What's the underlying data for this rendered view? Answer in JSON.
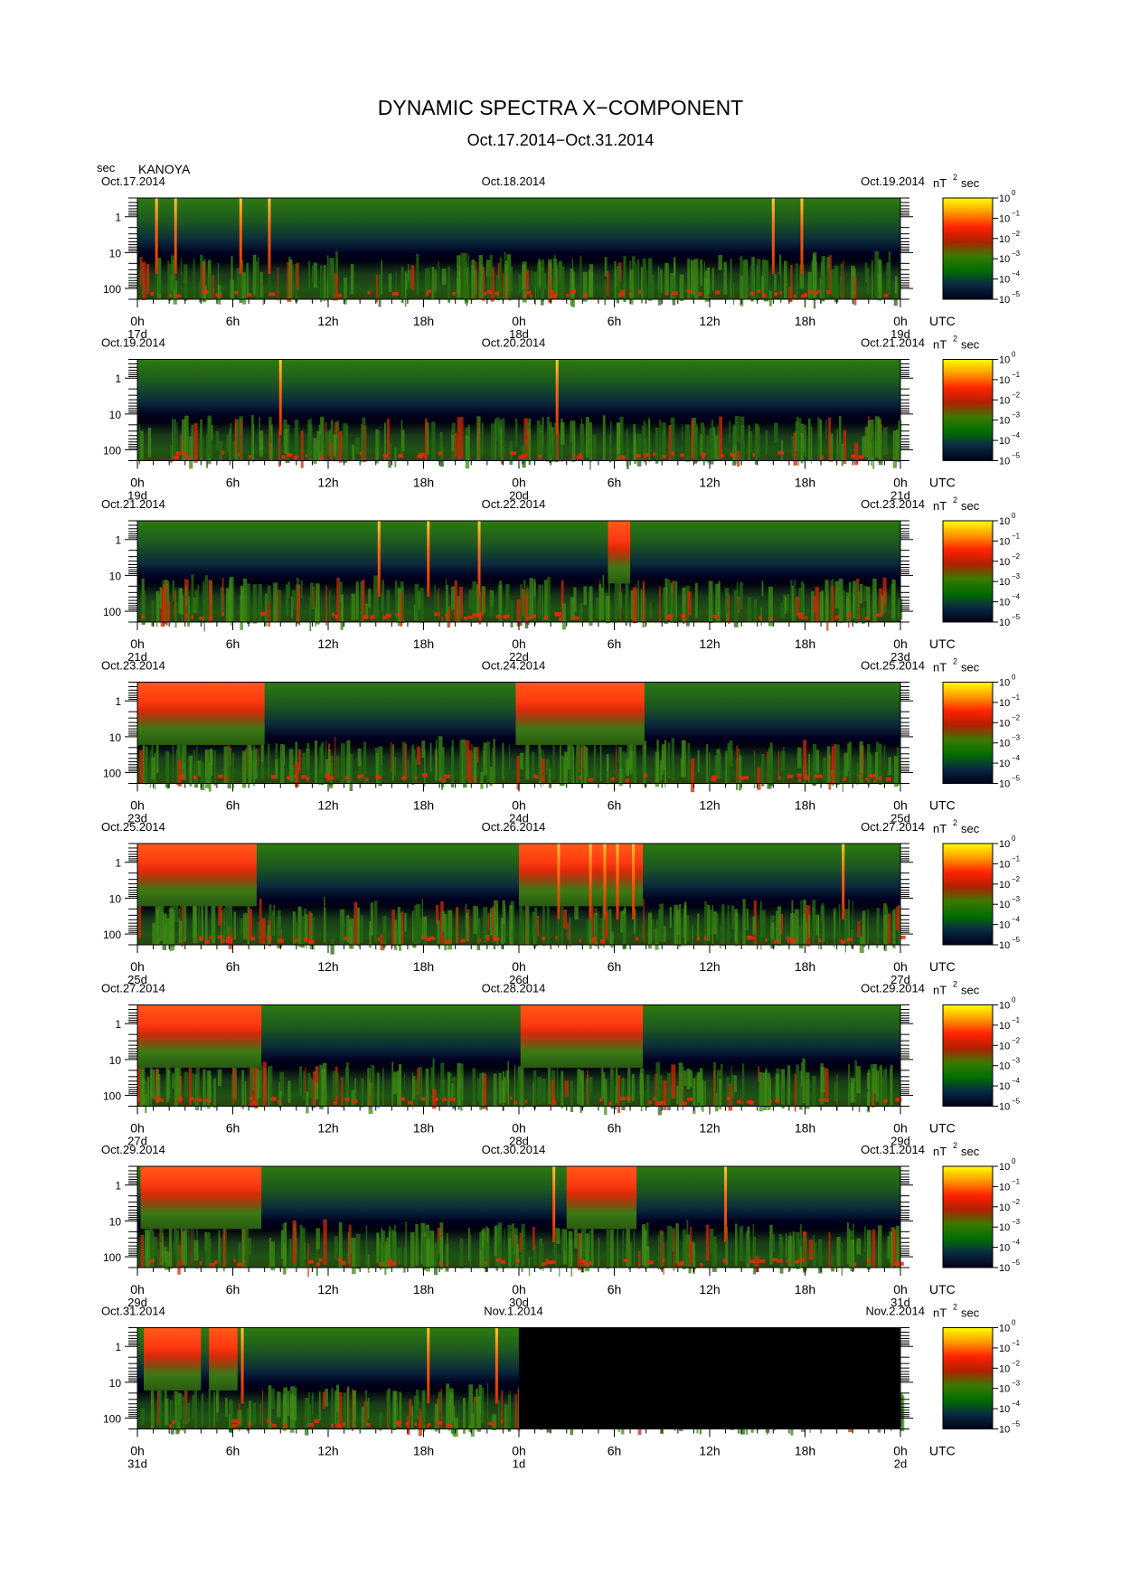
{
  "header": {
    "title": "DYNAMIC SPECTRA X−COMPONENT",
    "date_range": "Oct.17.2014−Oct.31.2014",
    "y_unit": "sec",
    "station": "KANOYA",
    "time_zone": "UTC"
  },
  "colorbar": {
    "unit_prefix": "nT",
    "unit_exp": "2",
    "unit_suffix": "sec",
    "ticks": [
      {
        "base": "10",
        "exp": "0"
      },
      {
        "base": "10",
        "exp": "−1"
      },
      {
        "base": "10",
        "exp": "−2"
      },
      {
        "base": "10",
        "exp": "−3"
      },
      {
        "base": "10",
        "exp": "−4"
      },
      {
        "base": "10",
        "exp": "−5"
      }
    ],
    "colors": [
      "#ffff00",
      "#ff9900",
      "#ff2200",
      "#b02000",
      "#3a7a00",
      "#006f00",
      "#0a2a44",
      "#000018"
    ]
  },
  "chart_data": {
    "type": "heatmap",
    "title": "DYNAMIC SPECTRA X−COMPONENT",
    "subtitle": "Oct.17.2014−Oct.31.2014",
    "station": "KANOYA",
    "y_axis": {
      "label": "sec",
      "scale": "log",
      "range": [
        200,
        0.3
      ],
      "ticks": [
        "1",
        "10",
        "100"
      ]
    },
    "x_axis": {
      "label": "UTC",
      "range_hours": [
        0,
        48
      ],
      "ticks": [
        "0h",
        "6h",
        "12h",
        "18h",
        "0h",
        "6h",
        "12h",
        "18h",
        "0h"
      ]
    },
    "color_scale": {
      "label": "nT²sec",
      "scale": "log",
      "range": [
        1e-05,
        1
      ]
    },
    "panels": [
      {
        "left_date": "Oct.17.2014",
        "mid_date": "Oct.18.2014",
        "right_date": "Oct.19.2014",
        "day_labels": [
          "17d",
          "18d",
          "19d"
        ],
        "high_power_intervals_h": [],
        "spikes_h": [
          1.2,
          2.4,
          6.5,
          8.3,
          40.0,
          41.8
        ],
        "no_data_from_h": null
      },
      {
        "left_date": "Oct.19.2014",
        "mid_date": "Oct.20.2014",
        "right_date": "Oct.21.2014",
        "day_labels": [
          "19d",
          "20d",
          "21d"
        ],
        "high_power_intervals_h": [],
        "spikes_h": [
          9.0,
          26.4
        ],
        "no_data_from_h": null
      },
      {
        "left_date": "Oct.21.2014",
        "mid_date": "Oct.22.2014",
        "right_date": "Oct.23.2014",
        "day_labels": [
          "21d",
          "22d",
          "23d"
        ],
        "high_power_intervals_h": [
          [
            29.6,
            31.0
          ]
        ],
        "spikes_h": [
          15.2,
          18.3,
          21.5
        ],
        "no_data_from_h": null
      },
      {
        "left_date": "Oct.23.2014",
        "mid_date": "Oct.24.2014",
        "right_date": "Oct.25.2014",
        "day_labels": [
          "23d",
          "24d",
          "25d"
        ],
        "high_power_intervals_h": [
          [
            0.0,
            8.0
          ],
          [
            23.8,
            31.9
          ]
        ],
        "spikes_h": [],
        "no_data_from_h": null
      },
      {
        "left_date": "Oct.25.2014",
        "mid_date": "Oct.26.2014",
        "right_date": "Oct.27.2014",
        "day_labels": [
          "25d",
          "26d",
          "27d"
        ],
        "high_power_intervals_h": [
          [
            0.0,
            7.5
          ],
          [
            24.0,
            31.8
          ]
        ],
        "spikes_h": [
          26.5,
          28.5,
          29.4,
          30.2,
          31.2,
          44.4
        ],
        "no_data_from_h": null
      },
      {
        "left_date": "Oct.27.2014",
        "mid_date": "Oct.28.2014",
        "right_date": "Oct.29.2014",
        "day_labels": [
          "27d",
          "28d",
          "29d"
        ],
        "high_power_intervals_h": [
          [
            0.0,
            7.8
          ],
          [
            24.1,
            31.8
          ]
        ],
        "spikes_h": [],
        "no_data_from_h": null
      },
      {
        "left_date": "Oct.29.2014",
        "mid_date": "Oct.30.2014",
        "right_date": "Oct.31.2014",
        "day_labels": [
          "29d",
          "30d",
          "31d"
        ],
        "high_power_intervals_h": [
          [
            0.2,
            7.8
          ],
          [
            27.0,
            31.4
          ]
        ],
        "spikes_h": [
          26.2,
          37.0
        ],
        "no_data_from_h": null
      },
      {
        "left_date": "Oct.31.2014",
        "mid_date": "Nov.1.2014",
        "right_date": "Nov.2.2014",
        "day_labels": [
          "31d",
          "1d",
          "2d"
        ],
        "high_power_intervals_h": [
          [
            0.4,
            4.0
          ],
          [
            4.5,
            6.3
          ]
        ],
        "spikes_h": [
          6.6,
          18.3,
          22.6
        ],
        "no_data_from_h": 24.0
      }
    ]
  }
}
